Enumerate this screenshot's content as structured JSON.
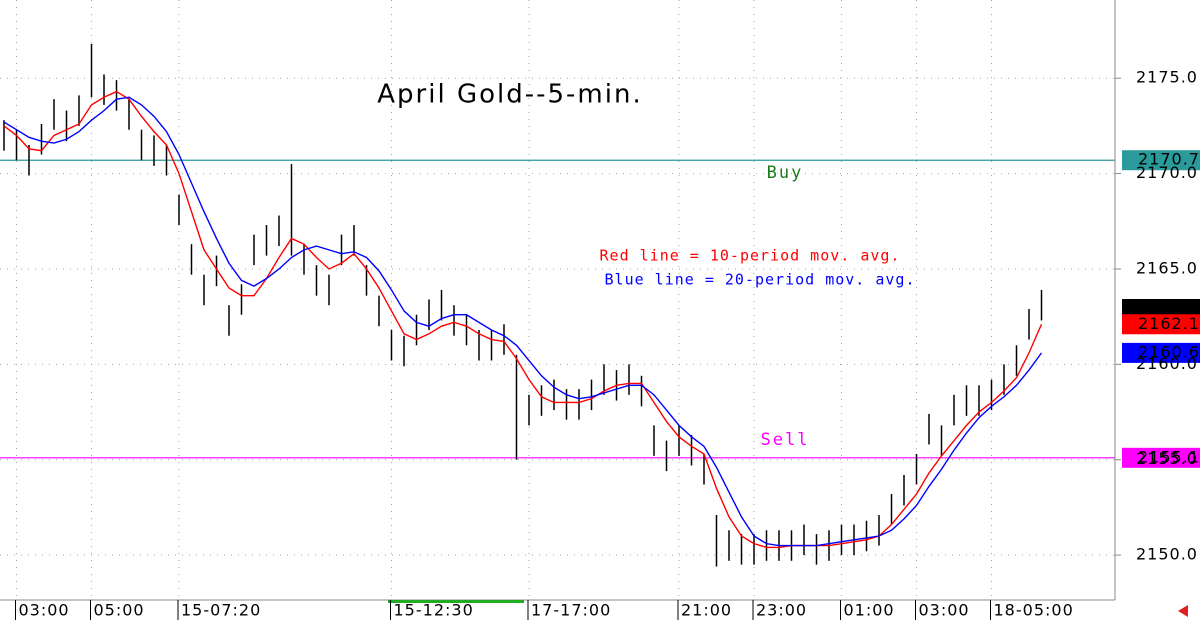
{
  "chart_data": {
    "type": "ohlc",
    "title": "April Gold--5-min.",
    "categories": [
      null,
      "03:00",
      null,
      null,
      null,
      null,
      null,
      "05:00",
      null,
      null,
      null,
      null,
      null,
      null,
      "15-07:20",
      null,
      null,
      null,
      null,
      null,
      null,
      null,
      null,
      null,
      null,
      null,
      null,
      null,
      null,
      null,
      null,
      "15-12:30",
      null,
      null,
      null,
      null,
      null,
      null,
      null,
      null,
      null,
      null,
      "17-17:00",
      null,
      null,
      null,
      null,
      null,
      null,
      null,
      null,
      null,
      null,
      null,
      "21:00",
      null,
      null,
      null,
      null,
      null,
      "23:00",
      null,
      null,
      null,
      null,
      null,
      null,
      "01:00",
      null,
      null,
      null,
      null,
      null,
      "03:00",
      null,
      null,
      null,
      null,
      null,
      "18-05:00",
      null,
      null,
      null,
      null
    ],
    "high": [
      2172.8,
      2172.3,
      2171.5,
      2172.6,
      2173.9,
      2173.3,
      2174.1,
      2176.8,
      2175.2,
      2174.9,
      2173.9,
      2172.3,
      2172.0,
      2171.5,
      2168.9,
      2166.3,
      2164.7,
      2165.7,
      2163.1,
      2164.2,
      2166.8,
      2167.3,
      2167.8,
      2170.5,
      2166.3,
      2165.2,
      2164.7,
      2166.8,
      2167.3,
      2165.2,
      2163.6,
      2161.8,
      2161.5,
      2162.6,
      2163.4,
      2163.9,
      2163.1,
      2162.6,
      2161.8,
      2161.8,
      2162.1,
      2160.5,
      2158.4,
      2158.9,
      2159.2,
      2158.7,
      2158.7,
      2159.2,
      2160.0,
      2159.7,
      2160.0,
      2159.4,
      2156.8,
      2156.0,
      2156.8,
      2156.3,
      2155.3,
      2152.1,
      2151.3,
      2151.1,
      2151.1,
      2151.3,
      2151.3,
      2151.3,
      2151.6,
      2151.1,
      2151.3,
      2151.6,
      2151.6,
      2151.8,
      2152.1,
      2153.2,
      2154.2,
      2155.3,
      2157.4,
      2156.8,
      2158.4,
      2158.9,
      2158.9,
      2159.2,
      2160.0,
      2161.0,
      2162.9,
      2163.9
    ],
    "low": [
      2171.2,
      2170.7,
      2169.9,
      2171.0,
      2172.3,
      2171.7,
      2172.5,
      2174.0,
      2173.6,
      2173.3,
      2172.3,
      2170.7,
      2170.4,
      2169.9,
      2167.3,
      2164.7,
      2163.1,
      2164.1,
      2161.5,
      2162.6,
      2165.2,
      2165.7,
      2166.2,
      2165.7,
      2164.7,
      2163.6,
      2163.1,
      2165.2,
      2165.7,
      2163.6,
      2162.0,
      2160.2,
      2159.9,
      2161.0,
      2161.8,
      2162.3,
      2161.5,
      2161.0,
      2160.2,
      2160.2,
      2160.5,
      2155.0,
      2156.8,
      2157.3,
      2157.6,
      2157.1,
      2157.1,
      2157.6,
      2158.4,
      2158.1,
      2158.4,
      2157.8,
      2155.2,
      2154.4,
      2155.2,
      2154.7,
      2153.7,
      2149.4,
      2149.7,
      2149.5,
      2149.5,
      2149.7,
      2149.7,
      2149.7,
      2150.0,
      2149.5,
      2149.7,
      2150.0,
      2150.0,
      2150.2,
      2150.5,
      2151.6,
      2152.6,
      2153.7,
      2155.8,
      2155.2,
      2156.8,
      2157.3,
      2157.3,
      2157.6,
      2158.4,
      2159.4,
      2161.3,
      2162.3
    ],
    "series": [
      {
        "name": "Red line = 10-period mov. avg.",
        "color": "#ff0000",
        "values": [
          2172.5,
          2172.0,
          2171.3,
          2171.2,
          2172.0,
          2172.3,
          2172.6,
          2173.6,
          2174.0,
          2174.3,
          2173.9,
          2173.0,
          2172.2,
          2171.5,
          2170.0,
          2168.0,
          2166.0,
          2165.0,
          2164.0,
          2163.6,
          2163.6,
          2164.5,
          2165.6,
          2166.6,
          2166.3,
          2165.6,
          2165.0,
          2165.3,
          2165.8,
          2165.0,
          2164.0,
          2162.8,
          2161.6,
          2161.3,
          2161.6,
          2162.0,
          2162.2,
          2162.0,
          2161.6,
          2161.3,
          2161.2,
          2160.3,
          2159.2,
          2158.3,
          2158.0,
          2158.0,
          2158.0,
          2158.2,
          2158.6,
          2158.9,
          2159.0,
          2159.0,
          2158.0,
          2157.0,
          2156.2,
          2155.7,
          2155.3,
          2153.5,
          2152.0,
          2151.0,
          2150.6,
          2150.4,
          2150.4,
          2150.5,
          2150.5,
          2150.5,
          2150.5,
          2150.6,
          2150.7,
          2150.8,
          2151.0,
          2151.6,
          2152.4,
          2153.2,
          2154.3,
          2155.2,
          2156.0,
          2156.8,
          2157.5,
          2158.0,
          2158.6,
          2159.3,
          2160.6,
          2162.1
        ]
      },
      {
        "name": "Blue line = 20-period mov. avg.",
        "color": "#0000ff",
        "values": [
          2172.7,
          2172.3,
          2171.9,
          2171.7,
          2171.6,
          2171.8,
          2172.2,
          2172.8,
          2173.3,
          2173.9,
          2174.0,
          2173.6,
          2173.0,
          2172.2,
          2171.0,
          2169.5,
          2168.0,
          2166.6,
          2165.3,
          2164.4,
          2164.1,
          2164.5,
          2165.0,
          2165.6,
          2166.0,
          2166.2,
          2166.0,
          2165.8,
          2165.9,
          2165.6,
          2164.9,
          2163.9,
          2162.8,
          2162.2,
          2162.0,
          2162.4,
          2162.6,
          2162.6,
          2162.2,
          2161.8,
          2161.5,
          2161.0,
          2160.2,
          2159.4,
          2158.8,
          2158.4,
          2158.2,
          2158.3,
          2158.5,
          2158.7,
          2158.9,
          2158.9,
          2158.4,
          2157.6,
          2156.8,
          2156.2,
          2155.7,
          2154.6,
          2153.3,
          2152.0,
          2151.0,
          2150.6,
          2150.5,
          2150.5,
          2150.5,
          2150.5,
          2150.6,
          2150.7,
          2150.8,
          2150.9,
          2151.0,
          2151.3,
          2151.9,
          2152.6,
          2153.6,
          2154.5,
          2155.5,
          2156.4,
          2157.2,
          2157.8,
          2158.3,
          2158.9,
          2159.7,
          2160.6
        ]
      }
    ],
    "levels": [
      {
        "label": "Buy",
        "value": 2170.7,
        "color": "#2a9a9a",
        "text_color": "#1a7a1a"
      },
      {
        "label": "Sell",
        "value": 2155.1,
        "color": "#ff00ff",
        "text_color": "#ff00ff"
      }
    ],
    "last_price": 2162.9,
    "ylim": [
      2147.75,
      2179.1
    ],
    "yticks": [
      {
        "value": 2150,
        "label": "2150.0"
      },
      {
        "value": 2155,
        "label": "2155.0"
      },
      {
        "value": 2160,
        "label": "2160.0"
      },
      {
        "value": 2165,
        "label": "2165.0"
      },
      {
        "value": 2170,
        "label": "2170.0"
      },
      {
        "value": 2175,
        "label": "2175.0"
      }
    ],
    "grid": true,
    "bar_color": "#000000"
  }
}
